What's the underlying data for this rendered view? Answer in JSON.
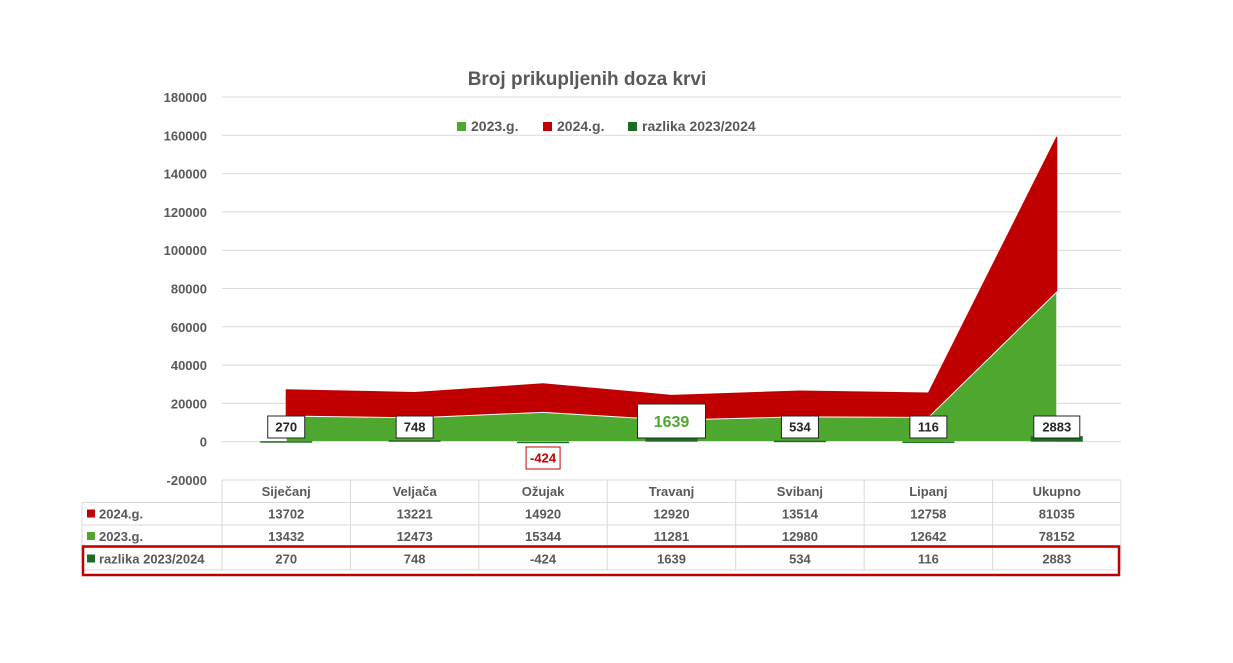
{
  "chart_data": {
    "type": "area",
    "title": "Broj prikupljenih doza krvi",
    "categories": [
      "Siječanj",
      "Veljača",
      "Ožujak",
      "Travanj",
      "Svibanj",
      "Lipanj",
      "Ukupno"
    ],
    "series": [
      {
        "name": "2024.g.",
        "values": [
          13702,
          13221,
          14920,
          12920,
          13514,
          12758,
          81035
        ],
        "color": "#C00000",
        "stacked": true
      },
      {
        "name": "2023.g.",
        "values": [
          13432,
          12473,
          15344,
          11281,
          12980,
          12642,
          78152
        ],
        "color": "#4EA72E",
        "stacked": true
      },
      {
        "name": "razlika 2023/2024",
        "values": [
          270,
          748,
          -424,
          1639,
          534,
          116,
          2883
        ],
        "color": "#1E6B23",
        "type": "bar"
      }
    ],
    "data_labels": [
      "270",
      "748",
      "-424",
      "1639",
      "534",
      "116",
      "2883"
    ],
    "highlight_label_color": "#4EA72E",
    "negative_label_color": "#C00000",
    "ylim": [
      -20000,
      180000
    ],
    "yticks": [
      "180000",
      "160000",
      "140000",
      "120000",
      "100000",
      "80000",
      "60000",
      "40000",
      "20000",
      "0",
      "-20000"
    ],
    "legend": [
      "2023.g.",
      "2024.g.",
      "razlika 2023/2024"
    ],
    "legend_placement": "top",
    "grid": true,
    "data_table": {
      "rows": [
        {
          "name": "2024.g.",
          "values": [
            "13702",
            "13221",
            "14920",
            "12920",
            "13514",
            "12758",
            "81035"
          ],
          "color": "#C00000"
        },
        {
          "name": "2023.g.",
          "values": [
            "13432",
            "12473",
            "15344",
            "11281",
            "12980",
            "12642",
            "78152"
          ],
          "color": "#4EA72E"
        },
        {
          "name": "razlika 2023/2024",
          "values": [
            "270",
            "748",
            "-424",
            "1639",
            "534",
            "116",
            "2883"
          ],
          "color": "#1E6B23",
          "highlighted": true
        }
      ],
      "highlight_color": "#C00000"
    }
  }
}
